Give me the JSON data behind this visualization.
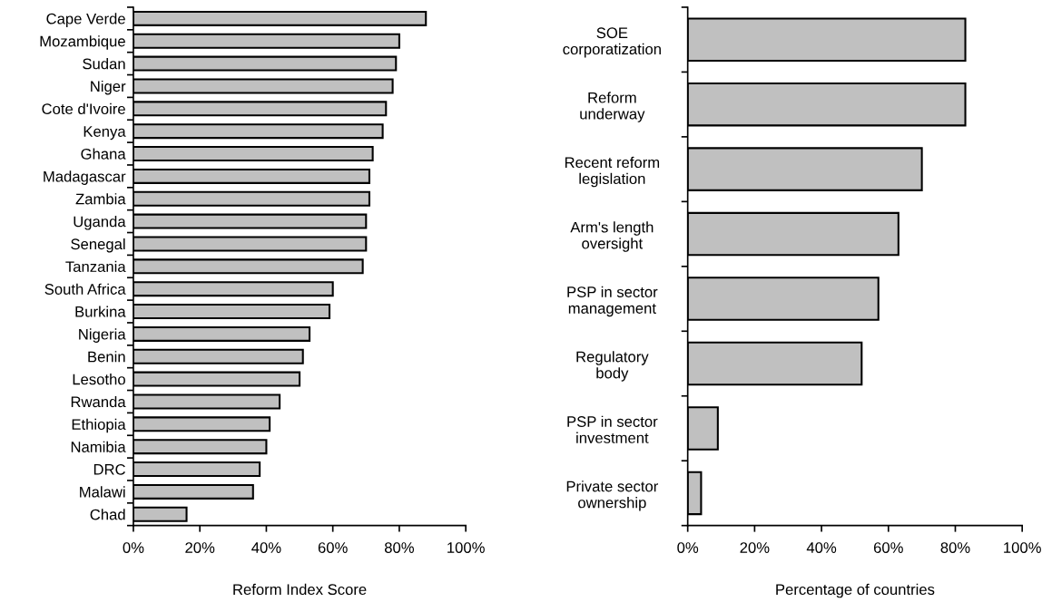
{
  "chart_data": [
    {
      "type": "bar",
      "orientation": "horizontal",
      "xlabel": "Reform Index Score",
      "color": "#c0c0c0",
      "categories": [
        "Cape Verde",
        "Mozambique",
        "Sudan",
        "Niger",
        "Cote d'Ivoire",
        "Kenya",
        "Ghana",
        "Madagascar",
        "Zambia",
        "Uganda",
        "Senegal",
        "Tanzania",
        "South Africa",
        "Burkina",
        "Nigeria",
        "Benin",
        "Lesotho",
        "Rwanda",
        "Ethiopia",
        "Namibia",
        "DRC",
        "Malawi",
        "Chad"
      ],
      "values": [
        88,
        80,
        79,
        78,
        76,
        75,
        72,
        71,
        71,
        70,
        70,
        69,
        60,
        59,
        53,
        51,
        50,
        44,
        41,
        40,
        38,
        36,
        16
      ],
      "xlim": [
        0,
        100
      ],
      "xticks": [
        {
          "value": 0,
          "label": "0%"
        },
        {
          "value": 20,
          "label": "20%"
        },
        {
          "value": 40,
          "label": "40%"
        },
        {
          "value": 60,
          "label": "60%"
        },
        {
          "value": 80,
          "label": "80%"
        },
        {
          "value": 100,
          "label": "100%"
        }
      ],
      "grid": false,
      "legend": false
    },
    {
      "type": "bar",
      "orientation": "horizontal",
      "xlabel": "Percentage of countries",
      "color": "#c0c0c0",
      "categories": [
        "SOE\ncorporatization",
        "Reform\nunderway",
        "Recent reform\nlegislation",
        "Arm's length\noversight",
        "PSP in sector\nmanagement",
        "Regulatory\nbody",
        "PSP in sector\ninvestment",
        "Private sector\nownership"
      ],
      "values": [
        83,
        83,
        70,
        63,
        57,
        52,
        9,
        4
      ],
      "xlim": [
        0,
        100
      ],
      "xticks": [
        {
          "value": 0,
          "label": "0%"
        },
        {
          "value": 20,
          "label": "20%"
        },
        {
          "value": 40,
          "label": "40%"
        },
        {
          "value": 60,
          "label": "60%"
        },
        {
          "value": 80,
          "label": "80%"
        },
        {
          "value": 100,
          "label": "100%"
        }
      ],
      "grid": false,
      "legend": false
    }
  ]
}
